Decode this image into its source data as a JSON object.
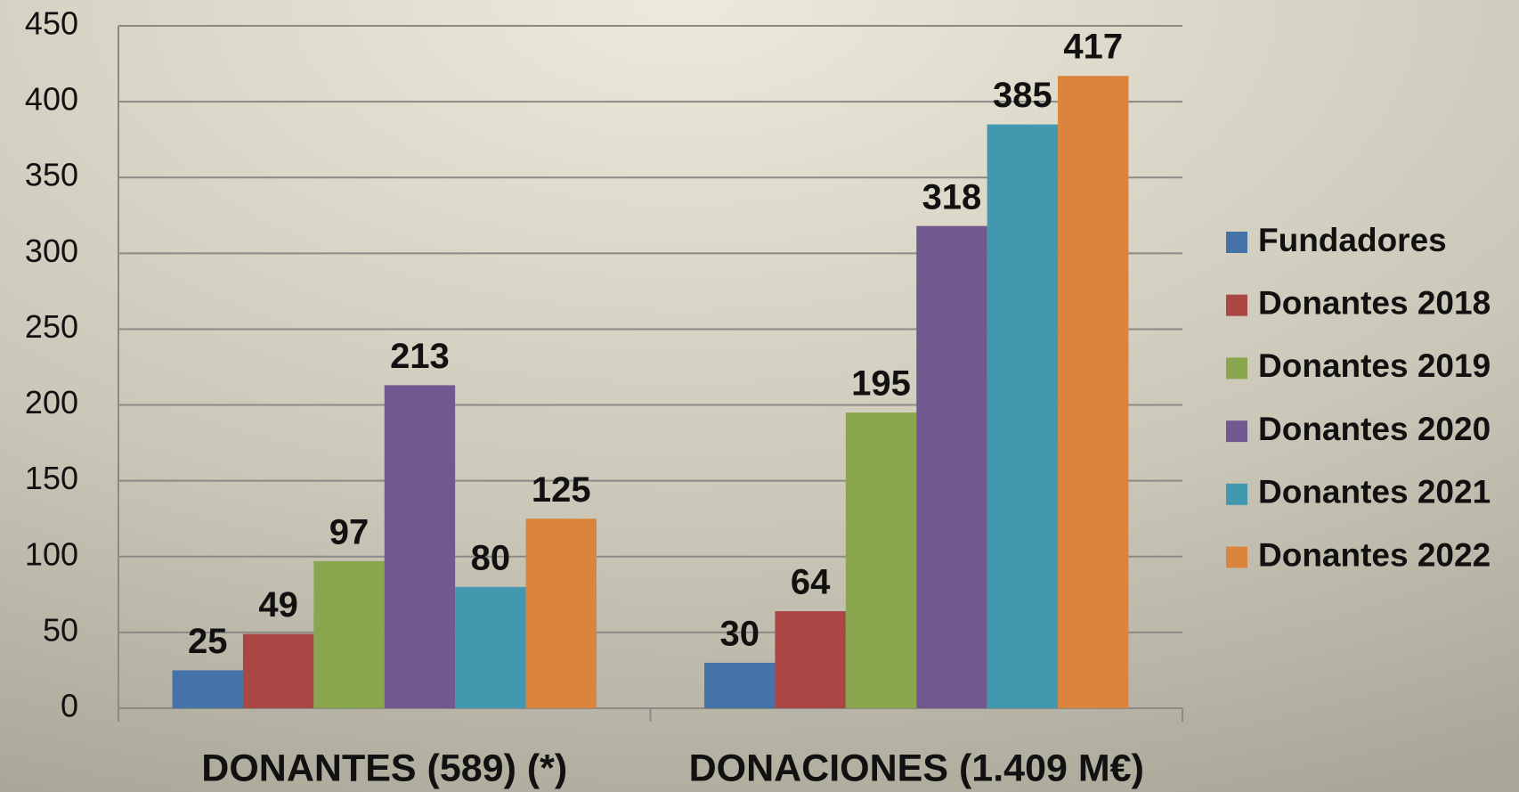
{
  "chart_data": {
    "type": "bar",
    "categories": [
      "DONANTES (589) (*)",
      "DONACIONES (1.409 M€)"
    ],
    "series": [
      {
        "name": "Fundadores",
        "color": "#4572a7",
        "values": [
          25,
          30
        ]
      },
      {
        "name": "Donantes 2018",
        "color": "#aa4643",
        "values": [
          49,
          64
        ]
      },
      {
        "name": "Donantes 2019",
        "color": "#89a54e",
        "values": [
          97,
          195
        ]
      },
      {
        "name": "Donantes 2020",
        "color": "#71588f",
        "values": [
          213,
          318
        ]
      },
      {
        "name": "Donantes 2021",
        "color": "#4198af",
        "values": [
          80,
          385
        ]
      },
      {
        "name": "Donantes 2022",
        "color": "#db843d",
        "values": [
          125,
          417
        ]
      }
    ],
    "ylim": [
      0,
      450
    ],
    "yticks": [
      0,
      50,
      100,
      150,
      200,
      250,
      300,
      350,
      400,
      450
    ],
    "grid": true,
    "legend": "right"
  }
}
